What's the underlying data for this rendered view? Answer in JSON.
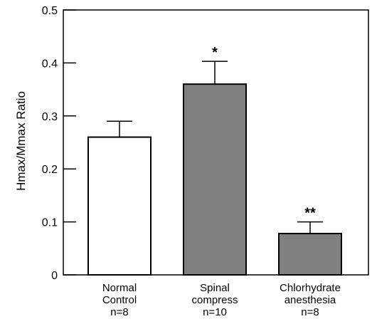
{
  "chart_data": {
    "type": "bar",
    "title": "",
    "xlabel": "",
    "ylabel": "Hmax/Mmax Ratio",
    "ylim": [
      0,
      0.5
    ],
    "yticks": [
      "0",
      "0.1",
      "0.2",
      "0.3",
      "0.4",
      "0.5"
    ],
    "grid": false,
    "categories": [
      {
        "line1": "Normal",
        "line2": "Control",
        "line3": "n=8"
      },
      {
        "line1": "Spinal",
        "line2": "compress",
        "line3": "n=10"
      },
      {
        "line1": "Chlorhydrate",
        "line2": "anesthesia",
        "line3": "n=8"
      }
    ],
    "values": [
      0.26,
      0.36,
      0.078
    ],
    "errors": [
      0.03,
      0.043,
      0.022
    ],
    "significance": [
      "",
      "*",
      "**"
    ],
    "bar_colors": [
      "#ffffff",
      "#808080",
      "#808080"
    ]
  }
}
